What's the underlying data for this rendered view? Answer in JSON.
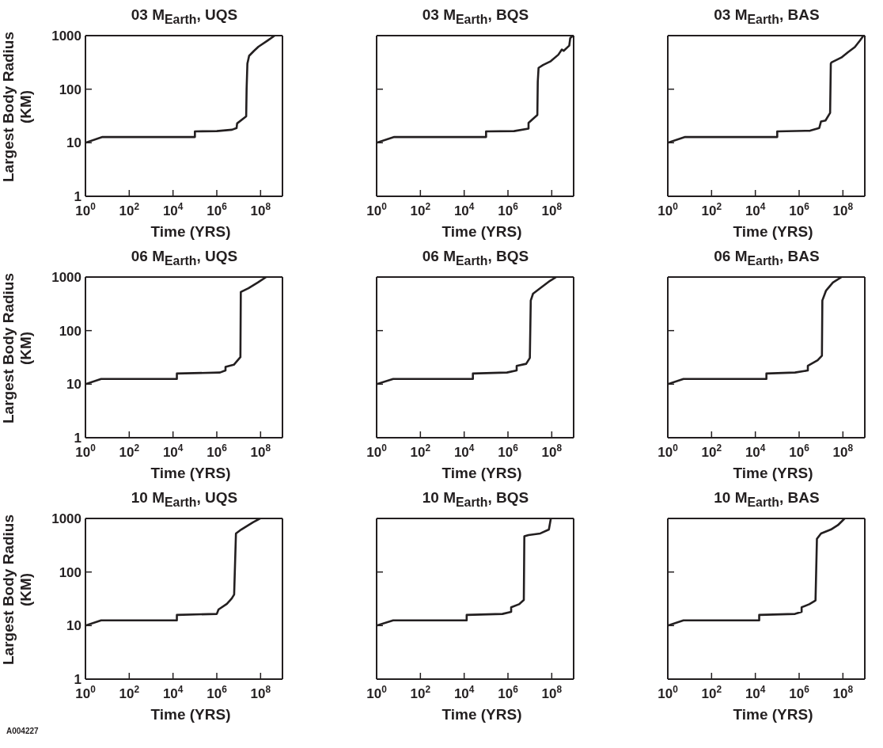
{
  "chart_data": [
    {
      "type": "line",
      "title": "03 M$_{Earth}$, UQS",
      "xlabel": "Time (YRS)",
      "ylabel": "Largest Body Radius (KM)",
      "log": "xy",
      "grid": false,
      "xlim": [
        1,
        1000000000.0
      ],
      "ylim": [
        1,
        1000
      ],
      "xticks": [
        {
          "value": 1,
          "label": "10$^{0}$"
        },
        {
          "value": 100,
          "label": "10$^{2}$"
        },
        {
          "value": 10000,
          "label": "10$^{4}$"
        },
        {
          "value": 1000000,
          "label": "10$^{6}$"
        },
        {
          "value": 100000000,
          "label": "10$^{8}$"
        }
      ],
      "yticks": [
        1,
        10,
        100,
        1000
      ],
      "series": [
        {
          "color": "#231f20",
          "x": [
            1,
            6,
            100000.0,
            100000.0,
            1000000.0,
            5000000.0,
            8000000.0,
            8500000.0,
            22000000.0,
            23000000.0,
            25000000.0,
            30000000.0,
            50000000.0,
            80000000.0,
            200000000.0,
            440000000.0
          ],
          "values": [
            10,
            12.8,
            12.8,
            16.3,
            16.5,
            17.5,
            18.8,
            23,
            31,
            100,
            300,
            420,
            520,
            620,
            800,
            1000
          ]
        }
      ]
    },
    {
      "type": "line",
      "title": "03 M$_{Earth}$, BQS",
      "xlabel": "Time (YRS)",
      "log": "xy",
      "grid": false,
      "tick_labels": "x",
      "xlim": [
        1,
        1000000000.0
      ],
      "ylim": [
        1,
        1000
      ],
      "xticks": [
        {
          "value": 1,
          "label": "10$^{0}$"
        },
        {
          "value": 100,
          "label": "10$^{2}$"
        },
        {
          "value": 10000,
          "label": "10$^{4}$"
        },
        {
          "value": 1000000,
          "label": "10$^{6}$"
        },
        {
          "value": 100000000,
          "label": "10$^{8}$"
        }
      ],
      "yticks": [
        1,
        10,
        100,
        1000
      ],
      "series": [
        {
          "color": "#231f20",
          "x": [
            1,
            6.4,
            100000.0,
            100000.0,
            1900000.0,
            8700000.0,
            8700000.0,
            22000000.0,
            23000000.0,
            25000000.0,
            40000000.0,
            90000000.0,
            200000000.0,
            290000000.0,
            350000000.0,
            630000000.0,
            700000000.0,
            950000000.0
          ],
          "values": [
            10,
            12.8,
            12.8,
            16.3,
            16.5,
            18.4,
            23.5,
            33,
            138,
            250,
            283,
            333,
            440,
            550,
            520,
            650,
            900,
            1000
          ]
        }
      ]
    },
    {
      "type": "line",
      "title": "03 M$_{Earth}$, BAS",
      "xlabel": "Time (YRS)",
      "log": "xy",
      "grid": false,
      "tick_labels": "x",
      "xlim": [
        1,
        1000000000.0
      ],
      "ylim": [
        1,
        1000
      ],
      "xticks": [
        {
          "value": 1,
          "label": "10$^{0}$"
        },
        {
          "value": 100,
          "label": "10$^{2}$"
        },
        {
          "value": 10000,
          "label": "10$^{4}$"
        },
        {
          "value": 1000000,
          "label": "10$^{6}$"
        },
        {
          "value": 100000000,
          "label": "10$^{8}$"
        }
      ],
      "yticks": [
        1,
        10,
        100,
        1000
      ],
      "series": [
        {
          "color": "#231f20",
          "x": [
            1,
            6.2,
            100000.0,
            100000.0,
            3200000.0,
            8300000.0,
            10000000.0,
            16000000.0,
            26000000.0,
            28000000.0,
            30000000.0,
            85000000.0,
            170000000.0,
            350000000.0,
            600000000.0,
            870000000.0
          ],
          "values": [
            10,
            12.8,
            12.8,
            16.3,
            16.8,
            18.8,
            25,
            26,
            36,
            300,
            316,
            390,
            490,
            610,
            810,
            1000
          ]
        }
      ]
    },
    {
      "type": "line",
      "title": "06 M$_{Earth}$, UQS",
      "xlabel": "Time (YRS)",
      "ylabel": "Largest Body Radius (KM)",
      "log": "xy",
      "grid": false,
      "xlim": [
        1,
        1000000000.0
      ],
      "ylim": [
        1,
        1000
      ],
      "xticks": [
        {
          "value": 1,
          "label": "10$^{0}$"
        },
        {
          "value": 100,
          "label": "10$^{2}$"
        },
        {
          "value": 10000,
          "label": "10$^{4}$"
        },
        {
          "value": 1000000,
          "label": "10$^{6}$"
        },
        {
          "value": 100000000,
          "label": "10$^{8}$"
        }
      ],
      "yticks": [
        1,
        10,
        100,
        1000
      ],
      "series": [
        {
          "color": "#231f20",
          "x": [
            1,
            5.2,
            15000.0,
            15000.0,
            1400000.0,
            2500000.0,
            2500000.0,
            6000000.0,
            12000000.0,
            12500000.0,
            28000000.0,
            75000000.0,
            180000000.0
          ],
          "values": [
            10,
            12.5,
            12.5,
            15.8,
            16.5,
            18,
            21,
            23,
            32,
            525,
            620,
            790,
            1000
          ]
        }
      ]
    },
    {
      "type": "line",
      "title": "06 M$_{Earth}$, BQS",
      "xlabel": "Time (YRS)",
      "log": "xy",
      "grid": false,
      "tick_labels": "x",
      "xlim": [
        1,
        1000000000.0
      ],
      "ylim": [
        1,
        1000
      ],
      "xticks": [
        {
          "value": 1,
          "label": "10$^{0}$"
        },
        {
          "value": 100,
          "label": "10$^{2}$"
        },
        {
          "value": 10000,
          "label": "10$^{4}$"
        },
        {
          "value": 1000000,
          "label": "10$^{6}$"
        },
        {
          "value": 100000000,
          "label": "10$^{8}$"
        }
      ],
      "yticks": [
        1,
        10,
        100,
        1000
      ],
      "series": [
        {
          "color": "#231f20",
          "x": [
            1,
            5.7,
            25000.0,
            25000.0,
            900000.0,
            2500000.0,
            2500000.0,
            6800000.0,
            10000000.0,
            11000000.0,
            14000000.0,
            30000000.0,
            83000000.0,
            160000000.0
          ],
          "values": [
            10,
            12.5,
            12.5,
            15.8,
            16.5,
            18,
            22,
            24,
            31,
            365,
            490,
            620,
            850,
            1000
          ]
        }
      ]
    },
    {
      "type": "line",
      "title": "06 M$_{Earth}$, BAS",
      "xlabel": "Time (YRS)",
      "log": "xy",
      "grid": false,
      "tick_labels": "x",
      "xlim": [
        1,
        1000000000.0
      ],
      "ylim": [
        1,
        1000
      ],
      "xticks": [
        {
          "value": 1,
          "label": "10$^{0}$"
        },
        {
          "value": 100,
          "label": "10$^{2}$"
        },
        {
          "value": 10000,
          "label": "10$^{4}$"
        },
        {
          "value": 1000000,
          "label": "10$^{6}$"
        },
        {
          "value": 100000000,
          "label": "10$^{8}$"
        }
      ],
      "yticks": [
        1,
        10,
        100,
        1000
      ],
      "series": [
        {
          "color": "#231f20",
          "x": [
            1,
            5.2,
            32000.0,
            32000.0,
            650000.0,
            2500000.0,
            2500000.0,
            7000000.0,
            11000000.0,
            11500000.0,
            17000000.0,
            35000000.0,
            87000000.0
          ],
          "values": [
            10,
            12.5,
            12.5,
            15.8,
            16.5,
            18,
            22,
            28,
            34,
            365,
            560,
            790,
            1000
          ]
        }
      ]
    },
    {
      "type": "line",
      "title": "10 M$_{Earth}$, UQS",
      "xlabel": "Time (YRS)",
      "ylabel": "Largest Body Radius (KM)",
      "annotations": [
        "A004227"
      ],
      "log": "xy",
      "grid": false,
      "xlim": [
        1,
        1000000000.0
      ],
      "ylim": [
        1,
        1000
      ],
      "xticks": [
        {
          "value": 1,
          "label": "10$^{0}$"
        },
        {
          "value": 100,
          "label": "10$^{2}$"
        },
        {
          "value": 10000,
          "label": "10$^{4}$"
        },
        {
          "value": 1000000,
          "label": "10$^{6}$"
        },
        {
          "value": 100000000,
          "label": "10$^{8}$"
        }
      ],
      "yticks": [
        1,
        10,
        100,
        1000
      ],
      "series": [
        {
          "color": "#231f20",
          "x": [
            1,
            5.2,
            15000.0,
            15000.0,
            1000000.0,
            1200000.0,
            2900000.0,
            4800000.0,
            6200000.0,
            7500000.0,
            13000000.0,
            45000000.0,
            95000000.0
          ],
          "values": [
            10,
            12.5,
            12.5,
            15.8,
            16.5,
            20,
            25.5,
            32,
            38,
            525,
            620,
            850,
            1000
          ]
        }
      ]
    },
    {
      "type": "line",
      "title": "10 M$_{Earth}$, BQS",
      "xlabel": "Time (YRS)",
      "log": "xy",
      "grid": false,
      "tick_labels": "x",
      "xlim": [
        1,
        1000000000.0
      ],
      "ylim": [
        1,
        1000
      ],
      "xticks": [
        {
          "value": 1,
          "label": "10$^{0}$"
        },
        {
          "value": 100,
          "label": "10$^{2}$"
        },
        {
          "value": 10000,
          "label": "10$^{4}$"
        },
        {
          "value": 1000000,
          "label": "10$^{6}$"
        },
        {
          "value": 100000000,
          "label": "10$^{8}$"
        }
      ],
      "yticks": [
        1,
        10,
        100,
        1000
      ],
      "series": [
        {
          "color": "#231f20",
          "x": [
            1,
            5.7,
            13000.0,
            13000.0,
            560000.0,
            1400000.0,
            1400000.0,
            3200000.0,
            5300000.0,
            5600000.0,
            8700000.0,
            30000000.0,
            74000000.0,
            91000000.0
          ],
          "values": [
            10,
            12.5,
            12.5,
            15.8,
            16.5,
            18,
            22,
            25,
            30,
            465,
            490,
            525,
            620,
            1000
          ]
        }
      ]
    },
    {
      "type": "line",
      "title": "10 M$_{Earth}$, BAS",
      "xlabel": "Time (YRS)",
      "log": "xy",
      "grid": false,
      "tick_labels": "x",
      "xlim": [
        1,
        1000000000.0
      ],
      "ylim": [
        1,
        1000
      ],
      "xticks": [
        {
          "value": 1,
          "label": "10$^{0}$"
        },
        {
          "value": 100,
          "label": "10$^{2}$"
        },
        {
          "value": 10000,
          "label": "10$^{4}$"
        },
        {
          "value": 1000000,
          "label": "10$^{6}$"
        },
        {
          "value": 100000000,
          "label": "10$^{8}$"
        }
      ],
      "yticks": [
        1,
        10,
        100,
        1000
      ],
      "series": [
        {
          "color": "#231f20",
          "x": [
            1,
            5.2,
            15000.0,
            15000.0,
            650000.0,
            1300000.0,
            1300000.0,
            2900000.0,
            5600000.0,
            6500000.0,
            10000000.0,
            28000000.0,
            59000000.0,
            120000000.0
          ],
          "values": [
            10,
            12.5,
            12.5,
            15.8,
            16.5,
            18,
            22,
            25,
            29.5,
            415,
            525,
            620,
            750,
            1000
          ]
        }
      ]
    }
  ]
}
